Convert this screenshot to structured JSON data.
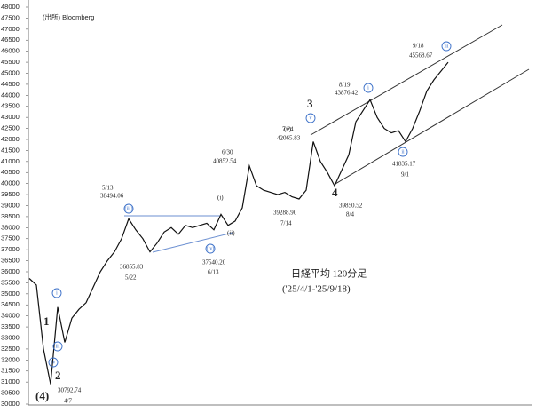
{
  "chart_data": {
    "type": "line",
    "source": "(出所) Bloomberg",
    "title": "日経平均 120分足",
    "subtitle": "('25/4/1-'25/9/18)",
    "series": [
      {
        "color": "#111111",
        "values": [
          35700,
          35400,
          32500,
          30900,
          34400,
          32800,
          33900,
          34300,
          34600,
          35300,
          36000,
          36500,
          36900,
          37500,
          38400,
          37900,
          37500,
          36900,
          37300,
          37800,
          38000,
          37700,
          38100,
          38000,
          38100,
          38200,
          37900,
          38600,
          38100,
          38300,
          38900,
          40800,
          39900,
          39700,
          39600,
          39500,
          39600,
          39400,
          39300,
          39700,
          41900,
          41000,
          40500,
          39900,
          40600,
          41300,
          42800,
          43300,
          43800,
          43000,
          42500,
          42300,
          42400,
          41900,
          42500,
          43300,
          44200,
          44700,
          45100,
          45500
        ]
      }
    ],
    "ylim": [
      30000,
      48000
    ],
    "yticks": [
      30000,
      30500,
      31000,
      31500,
      32000,
      32500,
      33000,
      33500,
      34000,
      34500,
      35000,
      35500,
      36000,
      36500,
      37000,
      37500,
      38000,
      38500,
      39000,
      39500,
      40000,
      40500,
      41000,
      41500,
      42000,
      42500,
      43000,
      43500,
      44000,
      44500,
      45000,
      45500,
      46000,
      46500,
      47000,
      47500,
      48000
    ],
    "annotations": [
      "5/13",
      "38494.06",
      "36855.83",
      "5/22",
      "37540.20",
      "6/13",
      "6/30",
      "40852.54",
      "(iii)",
      "(i)",
      "(ii)",
      "(iv)",
      "39288.90",
      "7/14",
      "7/24",
      "42065.83",
      "(v)",
      "3",
      "v",
      "8/19",
      "43876.42",
      "i",
      "4",
      "39850.52",
      "8/4",
      "41835.17",
      "9/1",
      "ii",
      "9/18",
      "45568.67",
      "iii",
      "1",
      "2",
      "(4)",
      "30792.74",
      "4/7",
      "i",
      "iii",
      "iv"
    ]
  }
}
